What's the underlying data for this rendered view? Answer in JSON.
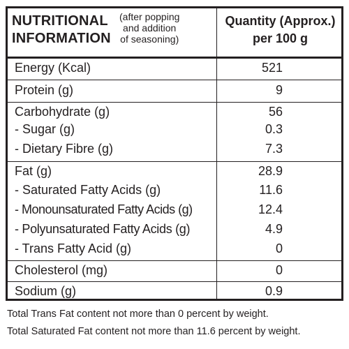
{
  "header": {
    "title_line1": "NUTRITIONAL",
    "title_line2": "INFORMATION",
    "note_line1": "(after popping",
    "note_line2": "and addition",
    "note_line3": "of seasoning)",
    "qty_line1": "Quantity (Approx.)",
    "qty_line2": "per 100 g"
  },
  "rows": {
    "energy": {
      "label": "Energy (Kcal)",
      "value": "521"
    },
    "protein": {
      "label": "Protein (g)",
      "value": "9"
    },
    "carbohydrate": {
      "label": "Carbohydrate (g)",
      "value": "56"
    },
    "sugar": {
      "label": "- Sugar (g)",
      "value": "0.3"
    },
    "fibre": {
      "label": "- Dietary Fibre (g)",
      "value": "7.3"
    },
    "fat": {
      "label": "Fat (g)",
      "value": "28.9"
    },
    "saturated": {
      "label": "- Saturated Fatty Acids (g)",
      "value": "11.6"
    },
    "mono": {
      "label": "- Monounsaturated Fatty Acids (g)",
      "value": "12.4"
    },
    "poly": {
      "label": "- Polyunsaturated Fatty Acids (g)",
      "value": "4.9"
    },
    "trans": {
      "label": "- Trans Fatty Acid (g)",
      "value": "0"
    },
    "cholesterol": {
      "label": "Cholesterol (mg)",
      "value": "0"
    },
    "sodium": {
      "label": "Sodium (g)",
      "value": "0.9"
    }
  },
  "footnotes": {
    "trans_fat": "Total Trans Fat content not more than 0 percent by  weight.",
    "saturated_fat": "Total Saturated Fat content not more than 11.6 percent by weight."
  }
}
